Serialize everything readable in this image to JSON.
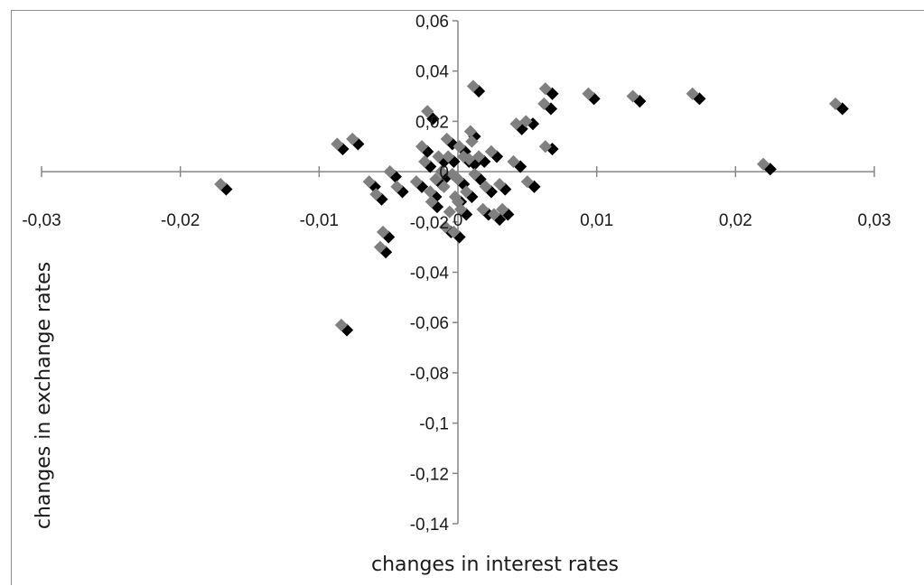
{
  "chart_data": {
    "type": "scatter",
    "title": "",
    "xlabel": "changes in interest rates",
    "ylabel": "changes in exchange rates",
    "xlim": [
      -0.03,
      0.03
    ],
    "ylim": [
      -0.14,
      0.06
    ],
    "x_ticks": [
      -0.03,
      -0.02,
      -0.01,
      0,
      0.01,
      0.02,
      0.03
    ],
    "x_tick_labels": [
      "-0,03",
      "-0,02",
      "-0,01",
      "0",
      "0,01",
      "0,02",
      "0,03"
    ],
    "y_ticks": [
      0.06,
      0.04,
      0.02,
      0,
      -0.02,
      -0.04,
      -0.06,
      -0.08,
      -0.1,
      -0.12,
      -0.14
    ],
    "y_tick_labels": [
      "0,06",
      "0,04",
      "0,02",
      "0",
      "-0,02",
      "-0,04",
      "-0,06",
      "-0,08",
      "-0,1",
      "-0,12",
      "-0,14"
    ],
    "grid": false,
    "legend": "none",
    "colors": {
      "series_black": "#000000",
      "series_gray": "#808080",
      "axis": "#868686"
    },
    "series": [
      {
        "points": [
          [
            0.0277,
            0.025
          ],
          [
            0.0225,
            0.001
          ],
          [
            0.0174,
            0.029
          ],
          [
            0.0131,
            0.028
          ],
          [
            0.0098,
            0.029
          ],
          [
            0.0068,
            0.031
          ],
          [
            0.0067,
            0.025
          ],
          [
            0.0068,
            0.009
          ],
          [
            0.0054,
            0.019
          ],
          [
            0.0046,
            0.017
          ],
          [
            0.0045,
            0.002
          ],
          [
            0.0055,
            -0.006
          ],
          [
            0.0028,
            0.006
          ],
          [
            0.0036,
            -0.017
          ],
          [
            0.003,
            -0.019
          ],
          [
            0.0022,
            -0.017
          ],
          [
            0.0012,
            0.014
          ],
          [
            0.0015,
            0.032
          ],
          [
            0.0012,
            0.003
          ],
          [
            0.001,
            -0.01
          ],
          [
            0.0006,
            -0.017
          ],
          [
            0.0004,
            -0.005
          ],
          [
            0.0005,
            0.008
          ],
          [
            0.0002,
            -0.012
          ],
          [
            0.0001,
            -0.026
          ],
          [
            -0.0005,
            -0.024
          ],
          [
            -0.0008,
            -0.002
          ],
          [
            -0.0015,
            -0.014
          ],
          [
            -0.0012,
            -0.005
          ],
          [
            -0.002,
            0.002
          ],
          [
            -0.0022,
            0.008
          ],
          [
            -0.0004,
            0.011
          ],
          [
            -0.0018,
            0.021
          ],
          [
            -0.004,
            -0.008
          ],
          [
            -0.0045,
            -0.002
          ],
          [
            -0.0055,
            -0.011
          ],
          [
            -0.006,
            -0.006
          ],
          [
            -0.0072,
            0.011
          ],
          [
            -0.0083,
            0.009
          ],
          [
            -0.005,
            -0.026
          ],
          [
            -0.0052,
            -0.032
          ],
          [
            -0.008,
            -0.063
          ],
          [
            -0.0167,
            -0.007
          ],
          [
            0.0008,
            0.004
          ],
          [
            -0.0003,
            0.004
          ],
          [
            0.0016,
            -0.003
          ],
          [
            0.0024,
            -0.008
          ],
          [
            -0.001,
            0.004
          ],
          [
            0.0019,
            0.004
          ],
          [
            0.0034,
            -0.007
          ],
          [
            -0.0026,
            -0.006
          ],
          [
            -0.0016,
            -0.01
          ],
          [
            0.0,
            -0.003
          ]
        ]
      },
      {
        "points": [
          [
            0.0272,
            0.027
          ],
          [
            0.022,
            0.003
          ],
          [
            0.0169,
            0.031
          ],
          [
            0.0126,
            0.03
          ],
          [
            0.0094,
            0.031
          ],
          [
            0.0063,
            0.033
          ],
          [
            0.0062,
            0.027
          ],
          [
            0.0063,
            0.01
          ],
          [
            0.0049,
            0.02
          ],
          [
            0.0042,
            0.019
          ],
          [
            0.004,
            0.004
          ],
          [
            0.005,
            -0.004
          ],
          [
            0.0024,
            0.008
          ],
          [
            0.0032,
            -0.015
          ],
          [
            0.0026,
            -0.017
          ],
          [
            0.0018,
            -0.015
          ],
          [
            0.0009,
            0.016
          ],
          [
            0.0011,
            0.034
          ],
          [
            0.0008,
            0.005
          ],
          [
            0.0006,
            -0.008
          ],
          [
            0.0002,
            -0.015
          ],
          [
            0.0,
            -0.003
          ],
          [
            0.0001,
            0.01
          ],
          [
            -0.0002,
            -0.01
          ],
          [
            -0.0003,
            -0.024
          ],
          [
            -0.0009,
            -0.022
          ],
          [
            -0.0012,
            0.0
          ],
          [
            -0.0019,
            -0.012
          ],
          [
            -0.0016,
            -0.003
          ],
          [
            -0.0024,
            0.004
          ],
          [
            -0.0026,
            0.01
          ],
          [
            -0.0008,
            0.013
          ],
          [
            -0.0022,
            0.024
          ],
          [
            -0.0044,
            -0.006
          ],
          [
            -0.0049,
            0.0
          ],
          [
            -0.0059,
            -0.009
          ],
          [
            -0.0064,
            -0.004
          ],
          [
            -0.0076,
            0.013
          ],
          [
            -0.0087,
            0.011
          ],
          [
            -0.0054,
            -0.024
          ],
          [
            -0.0056,
            -0.03
          ],
          [
            -0.0084,
            -0.061
          ],
          [
            -0.0171,
            -0.005
          ],
          [
            0.0004,
            0.006
          ],
          [
            -0.0007,
            0.006
          ],
          [
            0.0012,
            -0.001
          ],
          [
            0.002,
            -0.006
          ],
          [
            -0.0014,
            0.006
          ],
          [
            0.0015,
            0.006
          ],
          [
            0.003,
            -0.005
          ],
          [
            -0.003,
            -0.004
          ],
          [
            -0.002,
            -0.008
          ],
          [
            -0.0004,
            -0.001
          ],
          [
            -0.001,
            -0.006
          ],
          [
            0.0,
            -0.012
          ],
          [
            0.001,
            0.012
          ],
          [
            -0.0006,
            -0.016
          ]
        ]
      }
    ]
  }
}
